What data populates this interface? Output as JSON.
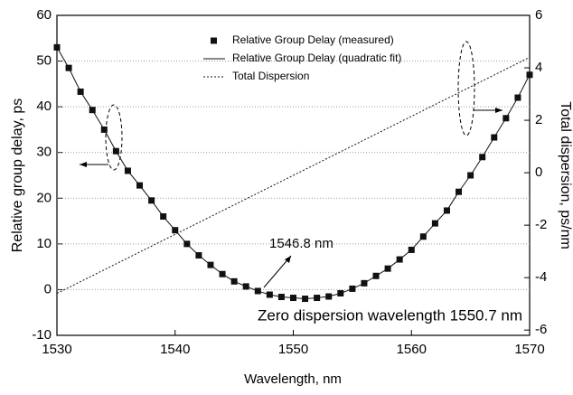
{
  "chart_data": {
    "type": "line",
    "xlabel": "Wavelength, nm",
    "ylabel": "Relative group delay, ps",
    "y2label": "Total dispersion, ps/nm",
    "xlim": [
      1530,
      1570
    ],
    "xticks": [
      1530,
      1540,
      1550,
      1560,
      1570
    ],
    "ylim": [
      -10,
      60
    ],
    "yticks": [
      -10,
      0,
      10,
      20,
      30,
      40,
      50,
      60
    ],
    "y2lim": [
      -6.2,
      6
    ],
    "y2ticks": [
      -6,
      -4,
      -2,
      0,
      2,
      4,
      6
    ],
    "grid": true,
    "legend": "top",
    "annotations": [
      "1546.8 nm",
      "Zero dispersion wavelength 1550.7 nm"
    ],
    "series": [
      {
        "name": "Relative Group Delay (measured)",
        "color": "#111111",
        "style": "markers",
        "x": [
          1530,
          1531,
          1532,
          1533,
          1534,
          1535,
          1536,
          1537,
          1538,
          1539,
          1540,
          1541,
          1542,
          1543,
          1544,
          1545,
          1546,
          1547,
          1548,
          1549,
          1550,
          1551,
          1552,
          1553,
          1554,
          1555,
          1556,
          1557,
          1558,
          1559,
          1560,
          1561,
          1562,
          1563,
          1564,
          1565,
          1566,
          1567,
          1568,
          1569,
          1570
        ],
        "values": [
          53,
          48.5,
          43.3,
          39.3,
          35,
          30.3,
          26,
          22.8,
          19.5,
          16,
          13,
          10,
          7.5,
          5.4,
          3.4,
          1.8,
          0.7,
          -0.3,
          -1.1,
          -1.6,
          -1.8,
          -2,
          -1.8,
          -1.5,
          -0.8,
          0.2,
          1.4,
          3,
          4.6,
          6.6,
          8.7,
          11.6,
          14.5,
          17.3,
          21.4,
          25,
          29,
          33.3,
          37.5,
          42,
          47
        ]
      },
      {
        "name": "Relative Group Delay (quadratic fit)",
        "color": "#111111",
        "style": "solid",
        "x": [
          1530,
          1531,
          1532,
          1533,
          1534,
          1535,
          1536,
          1537,
          1538,
          1539,
          1540,
          1541,
          1542,
          1543,
          1544,
          1545,
          1546,
          1547,
          1548,
          1549,
          1550,
          1551,
          1552,
          1553,
          1554,
          1555,
          1556,
          1557,
          1558,
          1559,
          1560,
          1561,
          1562,
          1563,
          1564,
          1565,
          1566,
          1567,
          1568,
          1569,
          1570
        ],
        "values": [
          53,
          48.5,
          43.3,
          39.3,
          35,
          30.3,
          26,
          22.8,
          19.5,
          16,
          13,
          10,
          7.5,
          5.4,
          3.4,
          1.8,
          0.7,
          -0.3,
          -1.1,
          -1.6,
          -1.8,
          -2,
          -1.8,
          -1.5,
          -0.8,
          0.2,
          1.4,
          3,
          4.6,
          6.6,
          8.7,
          11.6,
          14.5,
          17.3,
          21.4,
          25,
          29,
          33.3,
          37.5,
          42,
          47
        ]
      },
      {
        "name": "Total Dispersion",
        "color": "#111111",
        "style": "dotted",
        "axis": "y2",
        "x": [
          1530,
          1570
        ],
        "values": [
          -4.6,
          4.4
        ]
      }
    ]
  }
}
